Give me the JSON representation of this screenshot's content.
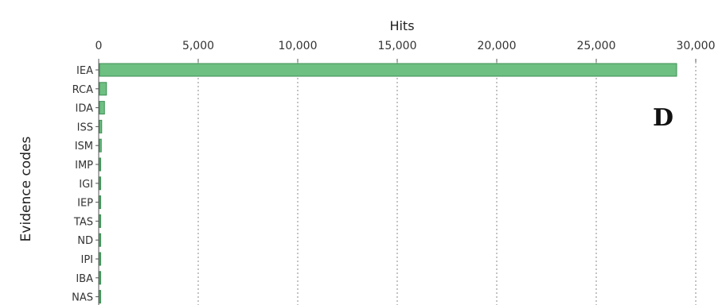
{
  "panel_label": "D",
  "chart_data": {
    "type": "bar",
    "orientation": "horizontal",
    "xlabel": "Hits",
    "ylabel": "Evidence codes",
    "xlim": [
      0,
      30000
    ],
    "x_ticks": [
      "0",
      "5,000",
      "10,000",
      "15,000",
      "20,000",
      "25,000",
      "30,000"
    ],
    "x_tick_values": [
      0,
      5000,
      10000,
      15000,
      20000,
      25000,
      30000
    ],
    "x_axis_position": "top",
    "grid": true,
    "bar_color": "#6dbf82",
    "categories": [
      "IEA",
      "RCA",
      "IDA",
      "ISS",
      "ISM",
      "IMP",
      "IGI",
      "IEP",
      "TAS",
      "ND",
      "IPI",
      "IBA",
      "NAS"
    ],
    "values": [
      29000,
      350,
      250,
      110,
      90,
      50,
      40,
      30,
      25,
      20,
      15,
      10,
      5
    ]
  }
}
